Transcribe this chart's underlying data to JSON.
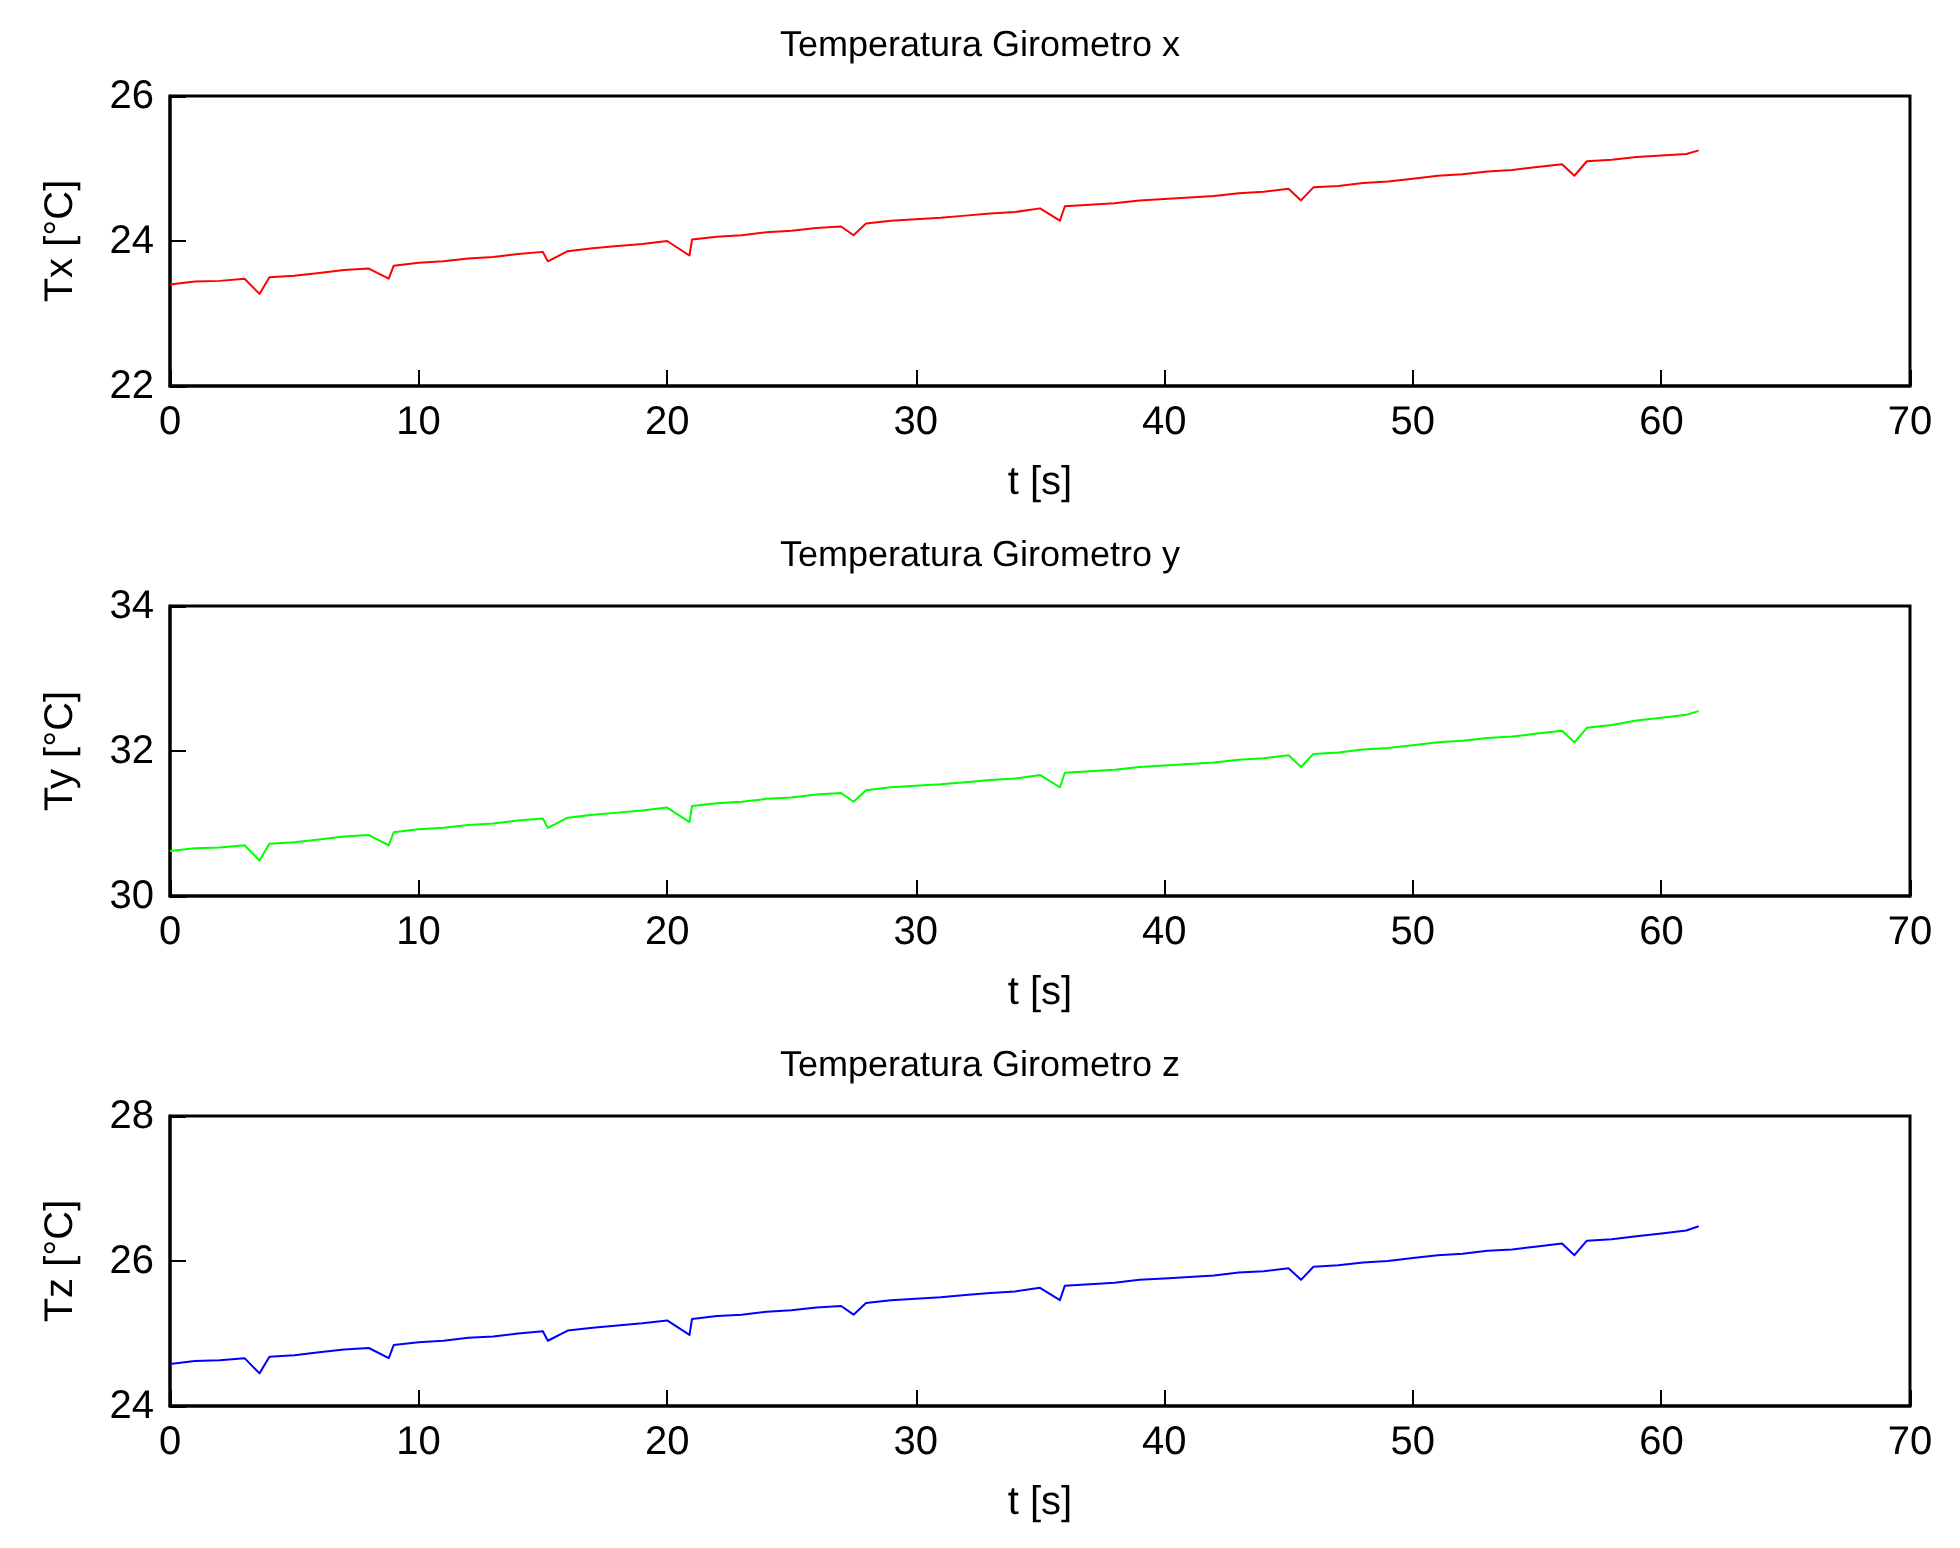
{
  "chart_data": [
    {
      "type": "line",
      "title": "Temperatura Girometro x",
      "xlabel": "t [s]",
      "ylabel": "Tx [°C]",
      "xlim": [
        0,
        70
      ],
      "xticks": [
        0,
        10,
        20,
        30,
        40,
        50,
        60,
        70
      ],
      "ylim": [
        22,
        26
      ],
      "yticks": [
        22,
        24,
        26
      ],
      "x": [
        0,
        1,
        2,
        3,
        3.6,
        4,
        5,
        6,
        7,
        8,
        8.8,
        9,
        10,
        11,
        12,
        13,
        14,
        15,
        15.2,
        16,
        17,
        18,
        19,
        20,
        20.9,
        21,
        22,
        23,
        24,
        25,
        26,
        27,
        27.5,
        28,
        29,
        30,
        31,
        32,
        33,
        34,
        35,
        35.8,
        36,
        37,
        38,
        39,
        40,
        41,
        42,
        43,
        44,
        45,
        45.5,
        46,
        47,
        48,
        49,
        50,
        51,
        52,
        53,
        54,
        55,
        56,
        56.5,
        57,
        58,
        59,
        60,
        61,
        61.5
      ],
      "series": [
        {
          "color": "#ff0000",
          "values": [
            23.4,
            23.44,
            23.45,
            23.48,
            23.27,
            23.5,
            23.52,
            23.56,
            23.6,
            23.62,
            23.48,
            23.66,
            23.7,
            23.72,
            23.76,
            23.78,
            23.82,
            23.85,
            23.72,
            23.86,
            23.9,
            23.93,
            23.96,
            24.0,
            23.8,
            24.02,
            24.06,
            24.08,
            24.12,
            24.14,
            24.18,
            24.2,
            24.08,
            24.24,
            24.28,
            24.3,
            24.32,
            24.35,
            24.38,
            24.4,
            24.45,
            24.28,
            24.48,
            24.5,
            24.52,
            24.56,
            24.58,
            24.6,
            24.62,
            24.66,
            24.68,
            24.72,
            24.56,
            24.74,
            24.76,
            24.8,
            24.82,
            24.86,
            24.9,
            24.92,
            24.96,
            24.98,
            25.02,
            25.06,
            24.9,
            25.1,
            25.12,
            25.16,
            25.18,
            25.2,
            25.25
          ]
        }
      ]
    },
    {
      "type": "line",
      "title": "Temperatura Girometro y",
      "xlabel": "t [s]",
      "ylabel": "Ty [°C]",
      "xlim": [
        0,
        70
      ],
      "xticks": [
        0,
        10,
        20,
        30,
        40,
        50,
        60,
        70
      ],
      "ylim": [
        30,
        34
      ],
      "yticks": [
        30,
        32,
        34
      ],
      "x": [
        0,
        1,
        2,
        3,
        3.6,
        4,
        5,
        6,
        7,
        8,
        8.8,
        9,
        10,
        11,
        12,
        13,
        14,
        15,
        15.2,
        16,
        17,
        18,
        19,
        20,
        20.9,
        21,
        22,
        23,
        24,
        25,
        26,
        27,
        27.5,
        28,
        29,
        30,
        31,
        32,
        33,
        34,
        35,
        35.8,
        36,
        37,
        38,
        39,
        40,
        41,
        42,
        43,
        44,
        45,
        45.5,
        46,
        47,
        48,
        49,
        50,
        51,
        52,
        53,
        54,
        55,
        56,
        56.5,
        57,
        58,
        59,
        60,
        61,
        61.5
      ],
      "series": [
        {
          "color": "#00ff00",
          "values": [
            30.62,
            30.66,
            30.67,
            30.7,
            30.49,
            30.72,
            30.74,
            30.78,
            30.82,
            30.84,
            30.7,
            30.88,
            30.92,
            30.94,
            30.98,
            31.0,
            31.04,
            31.07,
            30.94,
            31.08,
            31.12,
            31.15,
            31.18,
            31.22,
            31.02,
            31.24,
            31.28,
            31.3,
            31.34,
            31.36,
            31.4,
            31.42,
            31.3,
            31.46,
            31.5,
            31.52,
            31.54,
            31.57,
            31.6,
            31.62,
            31.67,
            31.5,
            31.7,
            31.72,
            31.74,
            31.78,
            31.8,
            31.82,
            31.84,
            31.88,
            31.9,
            31.94,
            31.78,
            31.96,
            31.98,
            32.02,
            32.04,
            32.08,
            32.12,
            32.14,
            32.18,
            32.2,
            32.24,
            32.28,
            32.12,
            32.32,
            32.36,
            32.42,
            32.46,
            32.5,
            32.55
          ]
        }
      ]
    },
    {
      "type": "line",
      "title": "Temperatura Girometro z",
      "xlabel": "t [s]",
      "ylabel": "Tz [°C]",
      "xlim": [
        0,
        70
      ],
      "xticks": [
        0,
        10,
        20,
        30,
        40,
        50,
        60,
        70
      ],
      "ylim": [
        24,
        28
      ],
      "yticks": [
        24,
        26,
        28
      ],
      "x": [
        0,
        1,
        2,
        3,
        3.6,
        4,
        5,
        6,
        7,
        8,
        8.8,
        9,
        10,
        11,
        12,
        13,
        14,
        15,
        15.2,
        16,
        17,
        18,
        19,
        20,
        20.9,
        21,
        22,
        23,
        24,
        25,
        26,
        27,
        27.5,
        28,
        29,
        30,
        31,
        32,
        33,
        34,
        35,
        35.8,
        36,
        37,
        38,
        39,
        40,
        41,
        42,
        43,
        44,
        45,
        45.5,
        46,
        47,
        48,
        49,
        50,
        51,
        52,
        53,
        54,
        55,
        56,
        56.5,
        57,
        58,
        59,
        60,
        61,
        61.5
      ],
      "series": [
        {
          "color": "#0000ff",
          "values": [
            24.58,
            24.62,
            24.63,
            24.66,
            24.45,
            24.68,
            24.7,
            24.74,
            24.78,
            24.8,
            24.66,
            24.84,
            24.88,
            24.9,
            24.94,
            24.96,
            25.0,
            25.03,
            24.9,
            25.04,
            25.08,
            25.11,
            25.14,
            25.18,
            24.98,
            25.2,
            25.24,
            25.26,
            25.3,
            25.32,
            25.36,
            25.38,
            25.26,
            25.42,
            25.46,
            25.48,
            25.5,
            25.53,
            25.56,
            25.58,
            25.63,
            25.46,
            25.66,
            25.68,
            25.7,
            25.74,
            25.76,
            25.78,
            25.8,
            25.84,
            25.86,
            25.9,
            25.74,
            25.92,
            25.94,
            25.98,
            26.0,
            26.04,
            26.08,
            26.1,
            26.14,
            26.16,
            26.2,
            26.24,
            26.08,
            26.28,
            26.3,
            26.34,
            26.38,
            26.42,
            26.48
          ]
        }
      ]
    }
  ]
}
